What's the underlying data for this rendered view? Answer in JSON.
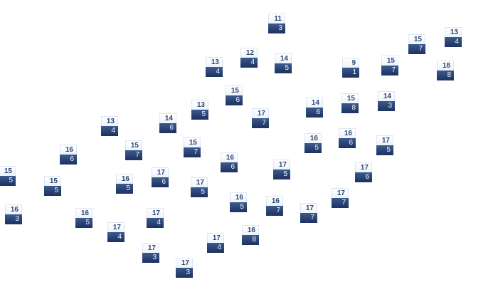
{
  "colors": {
    "tile_top": "#ffffff",
    "tile_bottom": "#1c3160",
    "top_text": "#2d4675"
  },
  "tiles": [
    {
      "top": "11",
      "bottom": "3"
    },
    {
      "top": "15",
      "bottom": "7"
    },
    {
      "top": "13",
      "bottom": "4"
    },
    {
      "top": "12",
      "bottom": "4"
    },
    {
      "top": "13",
      "bottom": "4"
    },
    {
      "top": "14",
      "bottom": "5"
    },
    {
      "top": "9",
      "bottom": "1"
    },
    {
      "top": "15",
      "bottom": "7"
    },
    {
      "top": "18",
      "bottom": "8"
    },
    {
      "top": "15",
      "bottom": "6"
    },
    {
      "top": "13",
      "bottom": "5"
    },
    {
      "top": "14",
      "bottom": "6"
    },
    {
      "top": "15",
      "bottom": "8"
    },
    {
      "top": "14",
      "bottom": "3"
    },
    {
      "top": "17",
      "bottom": "7"
    },
    {
      "top": "14",
      "bottom": "6"
    },
    {
      "top": "13",
      "bottom": "4"
    },
    {
      "top": "16",
      "bottom": "5"
    },
    {
      "top": "16",
      "bottom": "6"
    },
    {
      "top": "17",
      "bottom": "5"
    },
    {
      "top": "16",
      "bottom": "6"
    },
    {
      "top": "15",
      "bottom": "7"
    },
    {
      "top": "15",
      "bottom": "7"
    },
    {
      "top": "16",
      "bottom": "6"
    },
    {
      "top": "17",
      "bottom": "5"
    },
    {
      "top": "17",
      "bottom": "6"
    },
    {
      "top": "15",
      "bottom": "5"
    },
    {
      "top": "15",
      "bottom": "5"
    },
    {
      "top": "16",
      "bottom": "5"
    },
    {
      "top": "17",
      "bottom": "6"
    },
    {
      "top": "17",
      "bottom": "5"
    },
    {
      "top": "17",
      "bottom": "7"
    },
    {
      "top": "16",
      "bottom": "5"
    },
    {
      "top": "16",
      "bottom": "7"
    },
    {
      "top": "17",
      "bottom": "7"
    },
    {
      "top": "16",
      "bottom": "3"
    },
    {
      "top": "16",
      "bottom": "5"
    },
    {
      "top": "17",
      "bottom": "4"
    },
    {
      "top": "17",
      "bottom": "4"
    },
    {
      "top": "17",
      "bottom": "4"
    },
    {
      "top": "16",
      "bottom": "8"
    },
    {
      "top": "17",
      "bottom": "3"
    },
    {
      "top": "17",
      "bottom": "3"
    }
  ]
}
